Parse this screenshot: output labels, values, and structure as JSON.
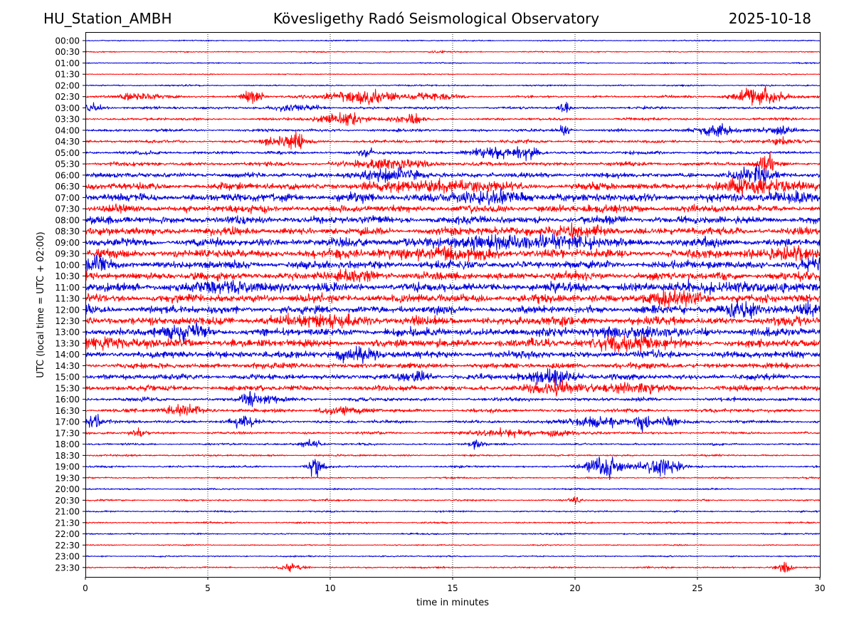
{
  "header": {
    "station": "HU_Station_AMBH",
    "observatory": "Kövesligethy Radó Seismological Observatory",
    "date": "2025-10-18"
  },
  "chart_data": {
    "type": "line",
    "subtype": "helicorder",
    "title": "Kövesligethy Radó Seismological Observatory",
    "xlabel": "time in minutes",
    "ylabel": "UTC (local time = UTC + 02:00)",
    "xlim": [
      0,
      30
    ],
    "xticks": [
      0,
      5,
      10,
      15,
      20,
      25,
      30
    ],
    "vertical_gridlines": [
      5,
      10,
      15,
      20,
      25
    ],
    "grid_style": "dotted",
    "series_colors": [
      "#0000dd",
      "#ff0000"
    ],
    "colors": {
      "blue": "#0000dd",
      "red": "#ff0000"
    },
    "rows": [
      {
        "label": "00:00",
        "color": "blue",
        "amp": 0.6,
        "events": []
      },
      {
        "label": "00:30",
        "color": "red",
        "amp": 0.6,
        "events": [
          [
            14.5,
            0.4,
            0.8
          ]
        ]
      },
      {
        "label": "01:00",
        "color": "blue",
        "amp": 0.6,
        "events": []
      },
      {
        "label": "01:30",
        "color": "red",
        "amp": 0.5,
        "events": []
      },
      {
        "label": "02:00",
        "color": "blue",
        "amp": 0.8,
        "events": []
      },
      {
        "label": "02:30",
        "color": "red",
        "amp": 1.2,
        "events": [
          [
            2.2,
            0.8,
            4
          ],
          [
            6.8,
            0.4,
            6
          ],
          [
            11.3,
            1.3,
            6
          ],
          [
            14.2,
            0.8,
            3
          ],
          [
            27.5,
            1.0,
            8
          ]
        ]
      },
      {
        "label": "03:00",
        "color": "blue",
        "amp": 1.3,
        "events": [
          [
            0.3,
            0.5,
            3
          ],
          [
            8.5,
            1.0,
            3
          ],
          [
            19.6,
            0.2,
            5
          ]
        ]
      },
      {
        "label": "03:30",
        "color": "red",
        "amp": 1.3,
        "events": [
          [
            10.5,
            1.0,
            5
          ],
          [
            13.2,
            0.7,
            4
          ]
        ]
      },
      {
        "label": "04:00",
        "color": "blue",
        "amp": 1.4,
        "events": [
          [
            19.6,
            0.2,
            5
          ],
          [
            25.8,
            0.8,
            5
          ],
          [
            28.5,
            0.6,
            4
          ]
        ]
      },
      {
        "label": "04:30",
        "color": "red",
        "amp": 1.5,
        "events": [
          [
            8.5,
            0.5,
            9
          ],
          [
            7.5,
            0.4,
            3
          ],
          [
            28.5,
            0.6,
            3
          ]
        ]
      },
      {
        "label": "05:00",
        "color": "blue",
        "amp": 1.6,
        "events": [
          [
            11.5,
            0.3,
            4
          ],
          [
            16.5,
            1.0,
            4
          ],
          [
            18.0,
            0.6,
            5
          ]
        ]
      },
      {
        "label": "05:30",
        "color": "red",
        "amp": 2.0,
        "events": [
          [
            12.5,
            1.5,
            4
          ],
          [
            27.8,
            0.3,
            10
          ]
        ]
      },
      {
        "label": "06:00",
        "color": "blue",
        "amp": 2.6,
        "events": [
          [
            12.5,
            1.5,
            4
          ],
          [
            27.5,
            1.0,
            5
          ]
        ]
      },
      {
        "label": "06:30",
        "color": "red",
        "amp": 3.4,
        "events": [
          [
            14.5,
            2.5,
            4
          ],
          [
            27.8,
            1.5,
            6
          ]
        ]
      },
      {
        "label": "07:00",
        "color": "blue",
        "amp": 4.0,
        "events": [
          [
            16.5,
            2.0,
            3
          ],
          [
            29.0,
            1.0,
            3
          ]
        ]
      },
      {
        "label": "07:30",
        "color": "red",
        "amp": 3.6,
        "events": []
      },
      {
        "label": "08:00",
        "color": "blue",
        "amp": 3.8,
        "events": []
      },
      {
        "label": "08:30",
        "color": "red",
        "amp": 3.8,
        "events": [
          [
            19.5,
            1.5,
            3
          ]
        ]
      },
      {
        "label": "09:00",
        "color": "blue",
        "amp": 4.0,
        "events": [
          [
            16.5,
            2.5,
            3
          ],
          [
            19.0,
            2.0,
            3
          ]
        ]
      },
      {
        "label": "09:30",
        "color": "red",
        "amp": 4.2,
        "events": [
          [
            14.5,
            2.5,
            3
          ],
          [
            29.0,
            1.5,
            4
          ]
        ]
      },
      {
        "label": "10:00",
        "color": "blue",
        "amp": 4.0,
        "events": [
          [
            0.5,
            0.8,
            4
          ],
          [
            29.5,
            0.5,
            3
          ]
        ]
      },
      {
        "label": "10:30",
        "color": "red",
        "amp": 4.0,
        "events": [
          [
            11.0,
            1.0,
            3
          ]
        ]
      },
      {
        "label": "11:00",
        "color": "blue",
        "amp": 4.5,
        "events": [
          [
            6.0,
            1.2,
            4
          ],
          [
            26.5,
            1.5,
            3
          ]
        ]
      },
      {
        "label": "11:30",
        "color": "red",
        "amp": 4.2,
        "events": [
          [
            24.0,
            1.5,
            4
          ]
        ]
      },
      {
        "label": "12:00",
        "color": "blue",
        "amp": 4.0,
        "events": [
          [
            26.8,
            1.0,
            5
          ],
          [
            29.5,
            0.5,
            3
          ]
        ]
      },
      {
        "label": "12:30",
        "color": "red",
        "amp": 4.2,
        "events": [
          [
            10.0,
            2.0,
            3
          ]
        ]
      },
      {
        "label": "13:00",
        "color": "blue",
        "amp": 4.0,
        "events": [
          [
            4.0,
            1.0,
            4
          ],
          [
            22.0,
            1.5,
            4
          ]
        ]
      },
      {
        "label": "13:30",
        "color": "red",
        "amp": 4.0,
        "events": [
          [
            1.2,
            1.2,
            4
          ],
          [
            22.2,
            1.5,
            5
          ]
        ]
      },
      {
        "label": "14:00",
        "color": "blue",
        "amp": 3.5,
        "events": [
          [
            11.0,
            0.8,
            6
          ]
        ]
      },
      {
        "label": "14:30",
        "color": "red",
        "amp": 2.8,
        "events": []
      },
      {
        "label": "15:00",
        "color": "blue",
        "amp": 2.8,
        "events": [
          [
            13.5,
            0.6,
            4
          ],
          [
            19.2,
            1.0,
            6
          ]
        ]
      },
      {
        "label": "15:30",
        "color": "red",
        "amp": 2.8,
        "events": [
          [
            19.3,
            1.0,
            6
          ],
          [
            22.5,
            1.5,
            3
          ]
        ]
      },
      {
        "label": "16:00",
        "color": "blue",
        "amp": 1.8,
        "events": [
          [
            6.7,
            0.3,
            6
          ],
          [
            7.2,
            0.8,
            3
          ]
        ]
      },
      {
        "label": "16:30",
        "color": "red",
        "amp": 1.8,
        "events": [
          [
            4.0,
            0.8,
            5
          ],
          [
            10.5,
            1.0,
            3
          ]
        ]
      },
      {
        "label": "17:00",
        "color": "blue",
        "amp": 1.6,
        "events": [
          [
            0.3,
            0.4,
            6
          ],
          [
            6.4,
            0.5,
            4
          ],
          [
            20.8,
            1.3,
            4
          ],
          [
            22.8,
            0.3,
            7
          ],
          [
            23.8,
            0.5,
            4
          ]
        ]
      },
      {
        "label": "17:30",
        "color": "red",
        "amp": 1.3,
        "events": [
          [
            2.2,
            0.3,
            4
          ],
          [
            17.0,
            1.2,
            3
          ],
          [
            19.3,
            0.6,
            3
          ]
        ]
      },
      {
        "label": "18:00",
        "color": "blue",
        "amp": 1.0,
        "events": [
          [
            9.2,
            0.4,
            4
          ],
          [
            16.0,
            0.3,
            4
          ]
        ]
      },
      {
        "label": "18:30",
        "color": "red",
        "amp": 0.9,
        "events": []
      },
      {
        "label": "19:00",
        "color": "blue",
        "amp": 1.0,
        "events": [
          [
            9.4,
            0.3,
            10
          ],
          [
            21.2,
            0.8,
            9
          ],
          [
            23.5,
            0.8,
            8
          ]
        ]
      },
      {
        "label": "19:30",
        "color": "red",
        "amp": 0.8,
        "events": []
      },
      {
        "label": "20:00",
        "color": "blue",
        "amp": 0.8,
        "events": []
      },
      {
        "label": "20:30",
        "color": "red",
        "amp": 0.9,
        "events": [
          [
            20.0,
            0.2,
            3
          ]
        ]
      },
      {
        "label": "21:00",
        "color": "blue",
        "amp": 0.8,
        "events": []
      },
      {
        "label": "21:30",
        "color": "red",
        "amp": 0.8,
        "events": []
      },
      {
        "label": "22:00",
        "color": "blue",
        "amp": 0.8,
        "events": []
      },
      {
        "label": "22:30",
        "color": "red",
        "amp": 0.6,
        "events": []
      },
      {
        "label": "23:00",
        "color": "blue",
        "amp": 0.7,
        "events": []
      },
      {
        "label": "23:30",
        "color": "red",
        "amp": 0.9,
        "events": [
          [
            8.5,
            0.4,
            3
          ],
          [
            28.5,
            0.3,
            5
          ]
        ]
      }
    ]
  }
}
